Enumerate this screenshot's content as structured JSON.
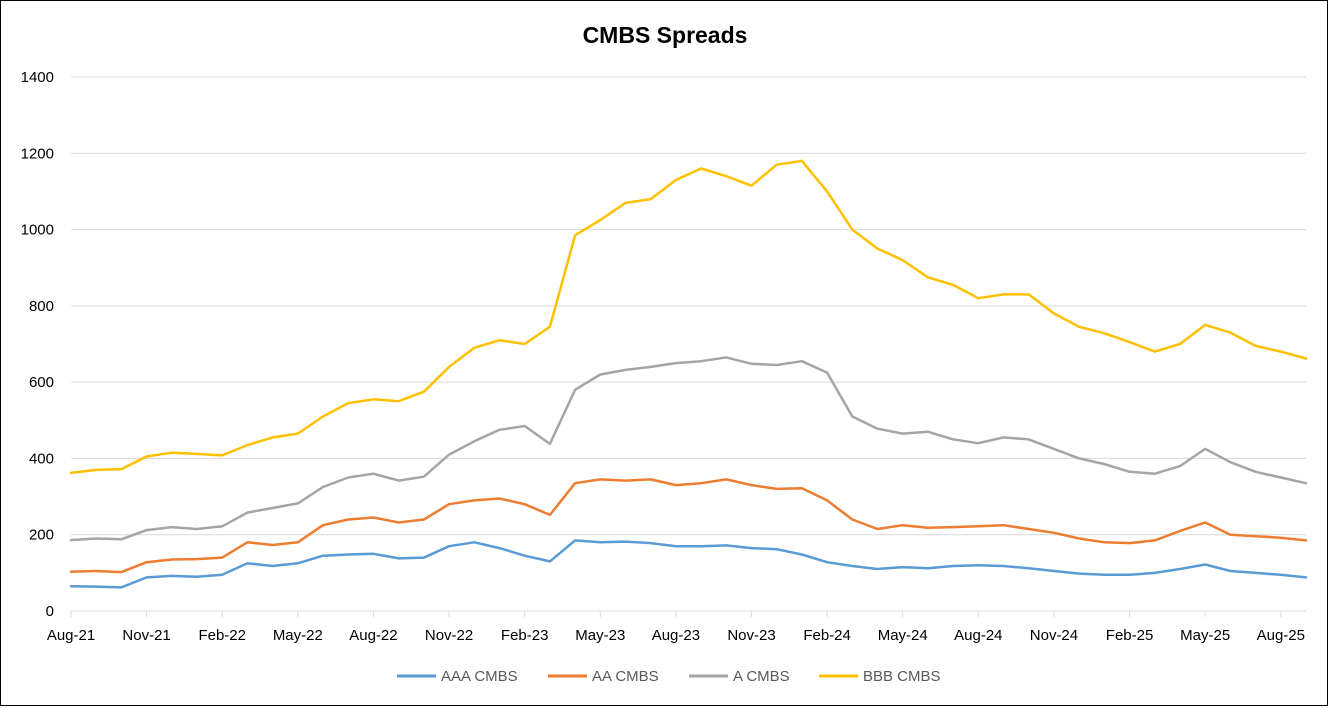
{
  "chart_data": {
    "type": "line",
    "title": "CMBS Spreads",
    "xlabel": "",
    "ylabel": "",
    "ylim": [
      0,
      1400
    ],
    "y_ticks": [
      0,
      200,
      400,
      600,
      800,
      1000,
      1200,
      1400
    ],
    "x_tick_labels": [
      "Aug-21",
      "Nov-21",
      "Feb-22",
      "May-22",
      "Aug-22",
      "Nov-22",
      "Feb-23",
      "May-23",
      "Aug-23",
      "Nov-23",
      "Feb-24",
      "May-24",
      "Aug-24",
      "Nov-24",
      "Feb-25",
      "May-25",
      "Aug-25"
    ],
    "x_range": [
      "2021-08",
      "2025-09"
    ],
    "grid": "horizontal",
    "legend_position": "bottom",
    "series": [
      {
        "name": "AAA CMBS",
        "color": "#5B9BD5",
        "points": [
          [
            "2021-08",
            65
          ],
          [
            "2021-09",
            64
          ],
          [
            "2021-10",
            62
          ],
          [
            "2021-11",
            88
          ],
          [
            "2021-12",
            92
          ],
          [
            "2022-01",
            90
          ],
          [
            "2022-02",
            95
          ],
          [
            "2022-03",
            125
          ],
          [
            "2022-04",
            118
          ],
          [
            "2022-05",
            125
          ],
          [
            "2022-06",
            145
          ],
          [
            "2022-07",
            148
          ],
          [
            "2022-08",
            150
          ],
          [
            "2022-09",
            138
          ],
          [
            "2022-10",
            140
          ],
          [
            "2022-11",
            170
          ],
          [
            "2022-12",
            180
          ],
          [
            "2023-01",
            165
          ],
          [
            "2023-02",
            145
          ],
          [
            "2023-03",
            130
          ],
          [
            "2023-04",
            185
          ],
          [
            "2023-05",
            180
          ],
          [
            "2023-06",
            182
          ],
          [
            "2023-07",
            178
          ],
          [
            "2023-08",
            170
          ],
          [
            "2023-09",
            170
          ],
          [
            "2023-10",
            172
          ],
          [
            "2023-11",
            165
          ],
          [
            "2023-12",
            162
          ],
          [
            "2024-01",
            148
          ],
          [
            "2024-02",
            128
          ],
          [
            "2024-03",
            118
          ],
          [
            "2024-04",
            110
          ],
          [
            "2024-05",
            115
          ],
          [
            "2024-06",
            112
          ],
          [
            "2024-07",
            118
          ],
          [
            "2024-08",
            120
          ],
          [
            "2024-09",
            118
          ],
          [
            "2024-10",
            112
          ],
          [
            "2024-11",
            105
          ],
          [
            "2024-12",
            98
          ],
          [
            "2025-01",
            95
          ],
          [
            "2025-02",
            95
          ],
          [
            "2025-03",
            100
          ],
          [
            "2025-04",
            110
          ],
          [
            "2025-05",
            122
          ],
          [
            "2025-06",
            105
          ],
          [
            "2025-07",
            100
          ],
          [
            "2025-08",
            95
          ],
          [
            "2025-09",
            88
          ]
        ]
      },
      {
        "name": "AA CMBS",
        "color": "#ED7D31",
        "points": [
          [
            "2021-08",
            103
          ],
          [
            "2021-09",
            105
          ],
          [
            "2021-10",
            102
          ],
          [
            "2021-11",
            128
          ],
          [
            "2021-12",
            135
          ],
          [
            "2022-01",
            136
          ],
          [
            "2022-02",
            140
          ],
          [
            "2022-03",
            180
          ],
          [
            "2022-04",
            173
          ],
          [
            "2022-05",
            180
          ],
          [
            "2022-06",
            225
          ],
          [
            "2022-07",
            240
          ],
          [
            "2022-08",
            245
          ],
          [
            "2022-09",
            232
          ],
          [
            "2022-10",
            240
          ],
          [
            "2022-11",
            280
          ],
          [
            "2022-12",
            290
          ],
          [
            "2023-01",
            295
          ],
          [
            "2023-02",
            280
          ],
          [
            "2023-03",
            252
          ],
          [
            "2023-04",
            335
          ],
          [
            "2023-05",
            345
          ],
          [
            "2023-06",
            342
          ],
          [
            "2023-07",
            345
          ],
          [
            "2023-08",
            330
          ],
          [
            "2023-09",
            335
          ],
          [
            "2023-10",
            345
          ],
          [
            "2023-11",
            330
          ],
          [
            "2023-12",
            320
          ],
          [
            "2024-01",
            322
          ],
          [
            "2024-02",
            290
          ],
          [
            "2024-03",
            240
          ],
          [
            "2024-04",
            215
          ],
          [
            "2024-05",
            225
          ],
          [
            "2024-06",
            218
          ],
          [
            "2024-07",
            220
          ],
          [
            "2024-08",
            222
          ],
          [
            "2024-09",
            225
          ],
          [
            "2024-10",
            215
          ],
          [
            "2024-11",
            205
          ],
          [
            "2024-12",
            190
          ],
          [
            "2025-01",
            180
          ],
          [
            "2025-02",
            178
          ],
          [
            "2025-03",
            185
          ],
          [
            "2025-04",
            210
          ],
          [
            "2025-05",
            232
          ],
          [
            "2025-06",
            200
          ],
          [
            "2025-07",
            196
          ],
          [
            "2025-08",
            192
          ],
          [
            "2025-09",
            185
          ]
        ]
      },
      {
        "name": "A CMBS",
        "color": "#A5A5A5",
        "points": [
          [
            "2021-08",
            186
          ],
          [
            "2021-09",
            190
          ],
          [
            "2021-10",
            188
          ],
          [
            "2021-11",
            212
          ],
          [
            "2021-12",
            220
          ],
          [
            "2022-01",
            215
          ],
          [
            "2022-02",
            222
          ],
          [
            "2022-03",
            258
          ],
          [
            "2022-04",
            270
          ],
          [
            "2022-05",
            282
          ],
          [
            "2022-06",
            325
          ],
          [
            "2022-07",
            350
          ],
          [
            "2022-08",
            360
          ],
          [
            "2022-09",
            342
          ],
          [
            "2022-10",
            352
          ],
          [
            "2022-11",
            410
          ],
          [
            "2022-12",
            445
          ],
          [
            "2023-01",
            475
          ],
          [
            "2023-02",
            485
          ],
          [
            "2023-03",
            438
          ],
          [
            "2023-04",
            580
          ],
          [
            "2023-05",
            620
          ],
          [
            "2023-06",
            632
          ],
          [
            "2023-07",
            640
          ],
          [
            "2023-08",
            650
          ],
          [
            "2023-09",
            655
          ],
          [
            "2023-10",
            665
          ],
          [
            "2023-11",
            648
          ],
          [
            "2023-12",
            645
          ],
          [
            "2024-01",
            655
          ],
          [
            "2024-02",
            625
          ],
          [
            "2024-03",
            510
          ],
          [
            "2024-04",
            478
          ],
          [
            "2024-05",
            465
          ],
          [
            "2024-06",
            470
          ],
          [
            "2024-07",
            450
          ],
          [
            "2024-08",
            440
          ],
          [
            "2024-09",
            455
          ],
          [
            "2024-10",
            450
          ],
          [
            "2024-11",
            425
          ],
          [
            "2024-12",
            400
          ],
          [
            "2025-01",
            385
          ],
          [
            "2025-02",
            365
          ],
          [
            "2025-03",
            360
          ],
          [
            "2025-04",
            380
          ],
          [
            "2025-05",
            425
          ],
          [
            "2025-06",
            390
          ],
          [
            "2025-07",
            365
          ],
          [
            "2025-08",
            350
          ],
          [
            "2025-09",
            335
          ]
        ]
      },
      {
        "name": "BBB CMBS",
        "color": "#FFC000",
        "points": [
          [
            "2021-08",
            362
          ],
          [
            "2021-09",
            370
          ],
          [
            "2021-10",
            372
          ],
          [
            "2021-11",
            405
          ],
          [
            "2021-12",
            415
          ],
          [
            "2022-01",
            412
          ],
          [
            "2022-02",
            408
          ],
          [
            "2022-03",
            435
          ],
          [
            "2022-04",
            455
          ],
          [
            "2022-05",
            465
          ],
          [
            "2022-06",
            510
          ],
          [
            "2022-07",
            545
          ],
          [
            "2022-08",
            555
          ],
          [
            "2022-09",
            550
          ],
          [
            "2022-10",
            575
          ],
          [
            "2022-11",
            640
          ],
          [
            "2022-12",
            690
          ],
          [
            "2023-01",
            710
          ],
          [
            "2023-02",
            700
          ],
          [
            "2023-03",
            745
          ],
          [
            "2023-04",
            985
          ],
          [
            "2023-05",
            1025
          ],
          [
            "2023-06",
            1070
          ],
          [
            "2023-07",
            1080
          ],
          [
            "2023-08",
            1130
          ],
          [
            "2023-09",
            1160
          ],
          [
            "2023-10",
            1140
          ],
          [
            "2023-11",
            1115
          ],
          [
            "2023-12",
            1170
          ],
          [
            "2024-01",
            1180
          ],
          [
            "2024-02",
            1100
          ],
          [
            "2024-03",
            1000
          ],
          [
            "2024-04",
            950
          ],
          [
            "2024-05",
            920
          ],
          [
            "2024-06",
            875
          ],
          [
            "2024-07",
            855
          ],
          [
            "2024-08",
            820
          ],
          [
            "2024-09",
            830
          ],
          [
            "2024-10",
            830
          ],
          [
            "2024-11",
            780
          ],
          [
            "2024-12",
            745
          ],
          [
            "2025-01",
            728
          ],
          [
            "2025-02",
            705
          ],
          [
            "2025-03",
            680
          ],
          [
            "2025-04",
            700
          ],
          [
            "2025-05",
            750
          ],
          [
            "2025-06",
            730
          ],
          [
            "2025-07",
            695
          ],
          [
            "2025-08",
            680
          ],
          [
            "2025-09",
            662
          ]
        ]
      }
    ]
  }
}
